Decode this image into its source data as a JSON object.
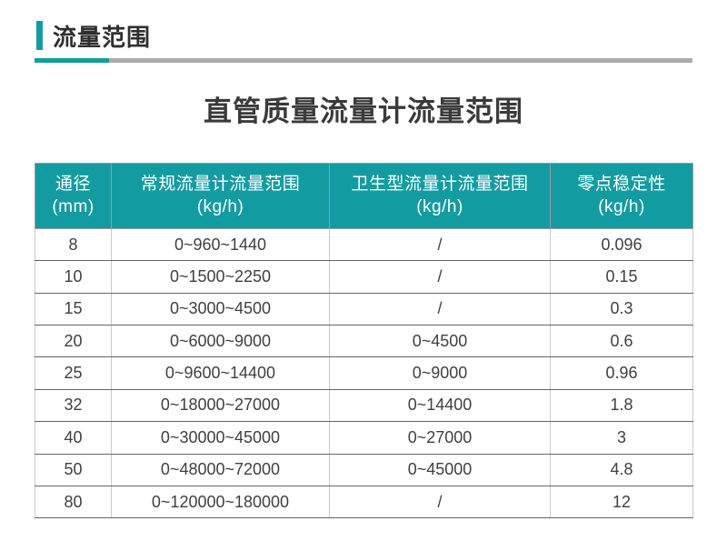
{
  "section": {
    "title": "流量范围"
  },
  "main": {
    "title": "直管质量流量计流量范围"
  },
  "colors": {
    "accent_teal": "#129CA2",
    "divider_gray": "#ACACAC",
    "header_text": "#FFFFFF",
    "body_text": "#404040"
  },
  "table": {
    "columns": [
      {
        "label": "通径",
        "unit": "(mm)"
      },
      {
        "label": "常规流量计流量范围",
        "unit": "(kg/h)"
      },
      {
        "label": "卫生型流量计流量范围",
        "unit": "(kg/h)"
      },
      {
        "label": "零点稳定性",
        "unit": "(kg/h)"
      }
    ],
    "rows": [
      [
        "8",
        "0~960~1440",
        "/",
        "0.096"
      ],
      [
        "10",
        "0~1500~2250",
        "/",
        "0.15"
      ],
      [
        "15",
        "0~3000~4500",
        "/",
        "0.3"
      ],
      [
        "20",
        "0~6000~9000",
        "0~4500",
        "0.6"
      ],
      [
        "25",
        "0~9600~14400",
        "0~9000",
        "0.96"
      ],
      [
        "32",
        "0~18000~27000",
        "0~14400",
        "1.8"
      ],
      [
        "40",
        "0~30000~45000",
        "0~27000",
        "3"
      ],
      [
        "50",
        "0~48000~72000",
        "0~45000",
        "4.8"
      ],
      [
        "80",
        "0~120000~180000",
        "/",
        "12"
      ]
    ]
  }
}
